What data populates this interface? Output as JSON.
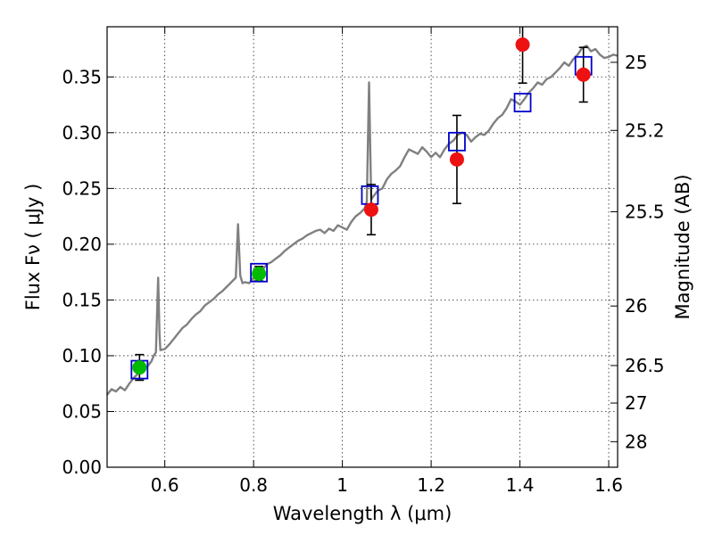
{
  "chart_data": {
    "type": "scatter",
    "xlabel": "Wavelength  λ (μm)",
    "ylabel": "Flux  Fν  ( μJy )",
    "y2label": "Magnitude (AB)",
    "xlim": [
      0.47,
      1.62
    ],
    "ylim": [
      0.0,
      0.395
    ],
    "grid": true,
    "x_ticks": [
      0.6,
      0.8,
      1.0,
      1.2,
      1.4,
      1.6
    ],
    "x_tick_labels": [
      "0.6",
      "0.8",
      "1",
      "1.2",
      "1.4",
      "1.6"
    ],
    "y_ticks": [
      0.0,
      0.05,
      0.1,
      0.15,
      0.2,
      0.25,
      0.3,
      0.35
    ],
    "y_tick_labels": [
      "0.00",
      "0.05",
      "0.10",
      "0.15",
      "0.20",
      "0.25",
      "0.30",
      "0.35"
    ],
    "y2_ticks": [
      {
        "mag": 25,
        "label": "25"
      },
      {
        "mag": 25.2,
        "label": "25.2"
      },
      {
        "mag": 25.5,
        "label": "25.5"
      },
      {
        "mag": 26,
        "label": "26"
      },
      {
        "mag": 26.5,
        "label": "26.5"
      },
      {
        "mag": 27,
        "label": "27"
      },
      {
        "mag": 28,
        "label": "28"
      }
    ],
    "colors": {
      "spectrum": "#808080",
      "model": "#0000cc",
      "optical": "#00bb00",
      "infrared": "#ee1111",
      "errorbar": "#000000"
    },
    "spectrum": {
      "x": [
        0.47,
        0.48,
        0.49,
        0.5,
        0.51,
        0.52,
        0.53,
        0.54,
        0.55,
        0.56,
        0.57,
        0.575,
        0.58,
        0.585,
        0.588,
        0.59,
        0.6,
        0.61,
        0.62,
        0.63,
        0.64,
        0.65,
        0.66,
        0.67,
        0.68,
        0.69,
        0.7,
        0.71,
        0.72,
        0.73,
        0.74,
        0.75,
        0.76,
        0.765,
        0.77,
        0.775,
        0.78,
        0.79,
        0.8,
        0.81,
        0.82,
        0.83,
        0.84,
        0.85,
        0.86,
        0.87,
        0.88,
        0.89,
        0.9,
        0.91,
        0.92,
        0.93,
        0.94,
        0.95,
        0.96,
        0.97,
        0.98,
        0.99,
        1.0,
        1.01,
        1.02,
        1.03,
        1.04,
        1.05,
        1.055,
        1.06,
        1.065,
        1.07,
        1.08,
        1.09,
        1.1,
        1.11,
        1.12,
        1.13,
        1.14,
        1.15,
        1.16,
        1.17,
        1.18,
        1.19,
        1.2,
        1.21,
        1.22,
        1.23,
        1.24,
        1.25,
        1.26,
        1.27,
        1.28,
        1.29,
        1.3,
        1.31,
        1.32,
        1.33,
        1.34,
        1.35,
        1.36,
        1.37,
        1.38,
        1.39,
        1.4,
        1.41,
        1.42,
        1.43,
        1.44,
        1.45,
        1.46,
        1.47,
        1.48,
        1.49,
        1.5,
        1.51,
        1.52,
        1.53,
        1.54,
        1.55,
        1.56,
        1.57,
        1.58,
        1.59,
        1.6,
        1.61,
        1.62
      ],
      "y": [
        0.065,
        0.07,
        0.068,
        0.072,
        0.069,
        0.075,
        0.08,
        0.084,
        0.087,
        0.09,
        0.095,
        0.1,
        0.103,
        0.17,
        0.12,
        0.105,
        0.106,
        0.11,
        0.115,
        0.12,
        0.125,
        0.128,
        0.133,
        0.137,
        0.14,
        0.145,
        0.148,
        0.151,
        0.155,
        0.158,
        0.162,
        0.166,
        0.17,
        0.218,
        0.172,
        0.165,
        0.166,
        0.165,
        0.17,
        0.174,
        0.177,
        0.182,
        0.184,
        0.187,
        0.19,
        0.194,
        0.197,
        0.2,
        0.203,
        0.205,
        0.208,
        0.21,
        0.212,
        0.213,
        0.21,
        0.214,
        0.212,
        0.217,
        0.215,
        0.213,
        0.22,
        0.225,
        0.228,
        0.232,
        0.238,
        0.345,
        0.24,
        0.243,
        0.248,
        0.25,
        0.258,
        0.263,
        0.266,
        0.27,
        0.278,
        0.285,
        0.283,
        0.281,
        0.287,
        0.283,
        0.278,
        0.282,
        0.278,
        0.285,
        0.29,
        0.293,
        0.298,
        0.3,
        0.298,
        0.292,
        0.296,
        0.299,
        0.298,
        0.302,
        0.308,
        0.313,
        0.316,
        0.322,
        0.33,
        0.328,
        0.325,
        0.33,
        0.336,
        0.34,
        0.345,
        0.343,
        0.348,
        0.35,
        0.354,
        0.358,
        0.363,
        0.36,
        0.366,
        0.37,
        0.376,
        0.378,
        0.373,
        0.375,
        0.37,
        0.367,
        0.368,
        0.37,
        0.369
      ]
    },
    "model_points": {
      "x": [
        0.543,
        0.812,
        1.062,
        1.258,
        1.406,
        1.543
      ],
      "y": [
        0.0875,
        0.1745,
        0.244,
        0.292,
        0.327,
        0.36
      ]
    },
    "optical_points": {
      "x": [
        0.543,
        0.812
      ],
      "y": [
        0.0895,
        0.1735
      ],
      "yerr": [
        0.0115,
        0.0065
      ]
    },
    "infrared_points": {
      "x": [
        1.065,
        1.258,
        1.406,
        1.543
      ],
      "y": [
        0.231,
        0.276,
        0.379,
        0.352
      ],
      "yerr": [
        0.0225,
        0.0395,
        0.0345,
        0.0245
      ]
    }
  }
}
